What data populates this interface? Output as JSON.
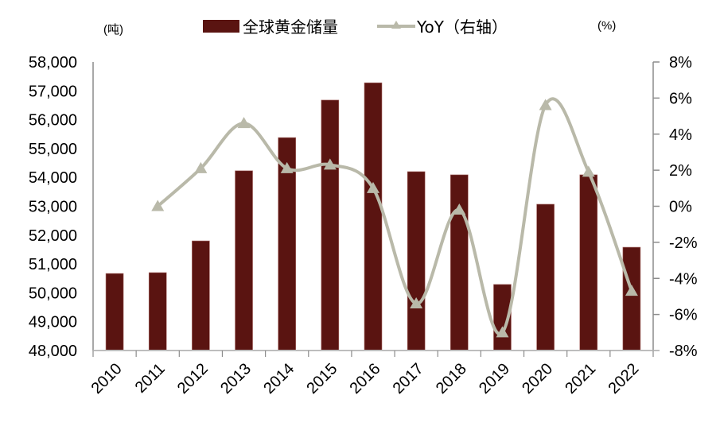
{
  "chart_data": {
    "type": "bar+line",
    "title": "",
    "categories": [
      "2010",
      "2011",
      "2012",
      "2013",
      "2014",
      "2015",
      "2016",
      "2017",
      "2018",
      "2019",
      "2020",
      "2021",
      "2022"
    ],
    "series": [
      {
        "name": "全球黄金储量",
        "type": "bar",
        "axis": "left",
        "color": "#5A1411",
        "values": [
          50670,
          50700,
          51800,
          54230,
          55380,
          56680,
          57280,
          54200,
          54090,
          50290,
          53070,
          54090,
          51580
        ]
      },
      {
        "name": "YoY（右轴）",
        "type": "line",
        "axis": "right",
        "color": "#B9B9A9",
        "marker": "triangle",
        "smooth": true,
        "values": [
          null,
          0.0,
          2.1,
          4.6,
          2.1,
          2.3,
          1.0,
          -5.4,
          -0.2,
          -7.0,
          5.6,
          1.9,
          -4.7
        ]
      }
    ],
    "left_axis": {
      "unit_label": "(吨)",
      "ylim": [
        48000,
        58000
      ],
      "ticks": [
        48000,
        49000,
        50000,
        51000,
        52000,
        53000,
        54000,
        55000,
        56000,
        57000,
        58000
      ],
      "tick_labels": [
        "48,000",
        "49,000",
        "50,000",
        "51,000",
        "52,000",
        "53,000",
        "54,000",
        "55,000",
        "56,000",
        "57,000",
        "58,000"
      ]
    },
    "right_axis": {
      "unit_label": "(%)",
      "ylim": [
        -8,
        8
      ],
      "ticks": [
        -8,
        -6,
        -4,
        -2,
        0,
        2,
        4,
        6,
        8
      ],
      "tick_labels": [
        "-8%",
        "-6%",
        "-4%",
        "-2%",
        "0%",
        "2%",
        "4%",
        "6%",
        "8%"
      ]
    },
    "xlabel": "",
    "x_tick_rotation": -45,
    "grid": false,
    "legend": {
      "position": "top",
      "entries": [
        "全球黄金储量",
        "YoY（右轴）"
      ]
    }
  },
  "legend": {
    "bar_label": "全球黄金储量",
    "line_label": "YoY（右轴）"
  },
  "axes": {
    "left_unit": "(吨)",
    "right_unit": "(%)"
  }
}
